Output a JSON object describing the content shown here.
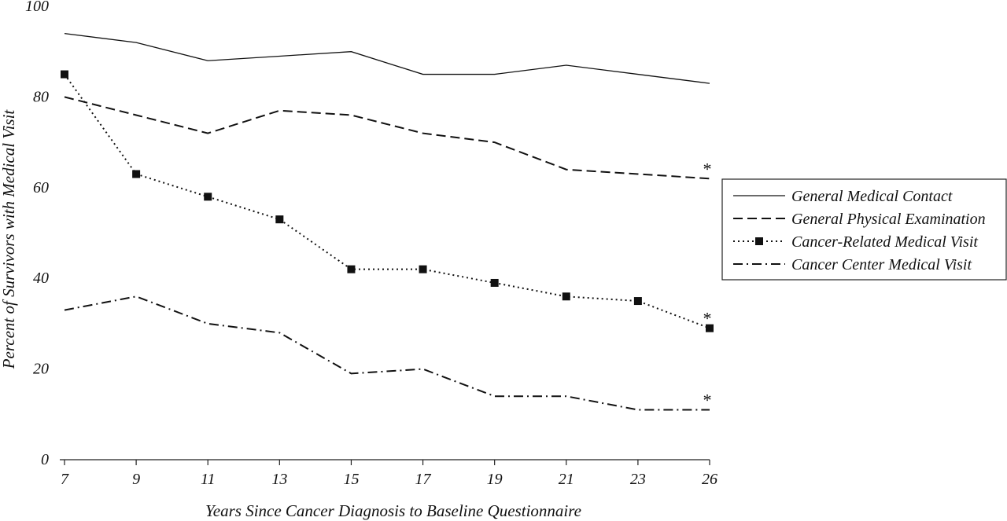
{
  "chart_data": {
    "type": "line",
    "title": "",
    "xlabel": "Years Since Cancer Diagnosis to Baseline Questionnaire",
    "ylabel": "Percent of Survivors with Medical Visit",
    "categories": [
      "7",
      "9",
      "11",
      "13",
      "15",
      "17",
      "19",
      "21",
      "23",
      "26"
    ],
    "ylim": [
      0,
      100
    ],
    "yticks": [
      "0",
      "20",
      "40",
      "60",
      "80",
      "100"
    ],
    "legend_position": "right",
    "grid": false,
    "series": [
      {
        "name": "General Medical Contact",
        "style": "solid",
        "values": [
          94,
          92,
          88,
          89,
          90,
          85,
          85,
          87,
          85,
          83
        ]
      },
      {
        "name": "General Physical Examination",
        "style": "dashed",
        "values": [
          80,
          76,
          72,
          77,
          76,
          72,
          70,
          64,
          63,
          62
        ],
        "annotation": "*"
      },
      {
        "name": "Cancer-Related Medical Visit",
        "style": "dotted-square-markers",
        "values": [
          85,
          63,
          58,
          53,
          42,
          42,
          39,
          36,
          35,
          29
        ],
        "annotation": "*"
      },
      {
        "name": "Cancer Center Medical Visit",
        "style": "dash-dot",
        "values": [
          33,
          36,
          30,
          28,
          19,
          20,
          14,
          14,
          11,
          11
        ],
        "annotation": "*"
      }
    ]
  }
}
